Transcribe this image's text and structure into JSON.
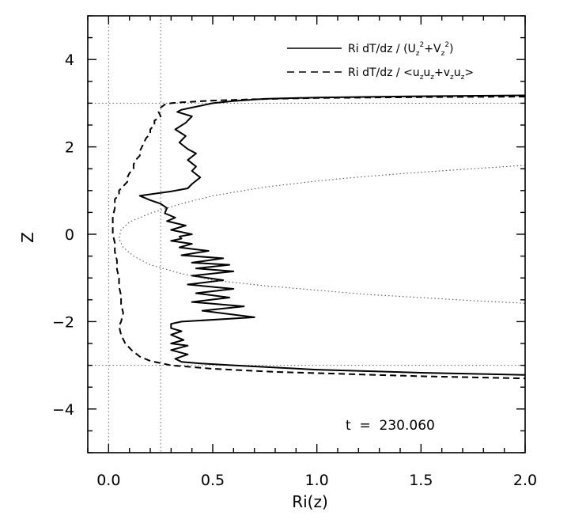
{
  "chart_data": {
    "type": "line",
    "xlabel": "Ri(z)",
    "ylabel": "Z",
    "xlim": [
      -0.1,
      2.0
    ],
    "ylim": [
      -5,
      5
    ],
    "x_ticks": [
      0.0,
      0.5,
      1.0,
      1.5,
      2.0
    ],
    "x_tick_labels": [
      "0.0",
      "0.5",
      "1.0",
      "1.5",
      "2.0"
    ],
    "y_ticks": [
      -4,
      -2,
      0,
      2,
      4
    ],
    "y_tick_labels": [
      "−4",
      "−2",
      "0",
      "2",
      "4"
    ],
    "grid": false,
    "legend_position": "top-right",
    "annotation": "t  =  230.060",
    "legend": [
      {
        "prefix": "Ri dT/dz / (U",
        "mid": "+V",
        "suffix": ")",
        "sub1": "z",
        "sup1": "2",
        "sub2": "z",
        "sup2": "2",
        "style": "solid"
      },
      {
        "prefix": "Ri dT/dz / <u",
        "parts": [
          "u",
          "+v",
          "u",
          ">"
        ],
        "style": "dashed"
      }
    ],
    "reference_lines": {
      "vertical_x": [
        0.0,
        0.25
      ],
      "horizontal_y": [
        3.0,
        -3.0
      ]
    },
    "series": [
      {
        "style": "solid",
        "points": [
          [
            2.0,
            3.18
          ],
          [
            1.5,
            3.16
          ],
          [
            1.0,
            3.13
          ],
          [
            0.75,
            3.1
          ],
          [
            0.6,
            3.05
          ],
          [
            0.5,
            3.0
          ],
          [
            0.45,
            2.95
          ],
          [
            0.4,
            2.9
          ],
          [
            0.35,
            2.85
          ],
          [
            0.33,
            2.8
          ],
          [
            0.4,
            2.7
          ],
          [
            0.37,
            2.55
          ],
          [
            0.32,
            2.4
          ],
          [
            0.37,
            2.25
          ],
          [
            0.34,
            2.1
          ],
          [
            0.38,
            1.95
          ],
          [
            0.42,
            1.85
          ],
          [
            0.38,
            1.7
          ],
          [
            0.42,
            1.55
          ],
          [
            0.4,
            1.45
          ],
          [
            0.44,
            1.3
          ],
          [
            0.4,
            1.15
          ],
          [
            0.38,
            1.05
          ],
          [
            0.3,
            0.98
          ],
          [
            0.22,
            0.93
          ],
          [
            0.15,
            0.88
          ],
          [
            0.2,
            0.78
          ],
          [
            0.25,
            0.7
          ],
          [
            0.28,
            0.6
          ],
          [
            0.27,
            0.48
          ],
          [
            0.32,
            0.38
          ],
          [
            0.28,
            0.3
          ],
          [
            0.37,
            0.2
          ],
          [
            0.3,
            0.1
          ],
          [
            0.4,
            0.0
          ],
          [
            0.34,
            -0.05
          ],
          [
            0.35,
            -0.1
          ],
          [
            0.3,
            -0.15
          ],
          [
            0.4,
            -0.22
          ],
          [
            0.34,
            -0.3
          ],
          [
            0.48,
            -0.38
          ],
          [
            0.35,
            -0.48
          ],
          [
            0.55,
            -0.55
          ],
          [
            0.4,
            -0.65
          ],
          [
            0.58,
            -0.7
          ],
          [
            0.42,
            -0.78
          ],
          [
            0.6,
            -0.85
          ],
          [
            0.4,
            -0.95
          ],
          [
            0.55,
            -1.05
          ],
          [
            0.38,
            -1.15
          ],
          [
            0.6,
            -1.25
          ],
          [
            0.42,
            -1.35
          ],
          [
            0.58,
            -1.45
          ],
          [
            0.4,
            -1.55
          ],
          [
            0.65,
            -1.65
          ],
          [
            0.45,
            -1.75
          ],
          [
            0.7,
            -1.9
          ],
          [
            0.35,
            -2.0
          ],
          [
            0.3,
            -2.05
          ],
          [
            0.3,
            -2.15
          ],
          [
            0.35,
            -2.22
          ],
          [
            0.3,
            -2.3
          ],
          [
            0.36,
            -2.42
          ],
          [
            0.3,
            -2.5
          ],
          [
            0.38,
            -2.55
          ],
          [
            0.3,
            -2.65
          ],
          [
            0.38,
            -2.75
          ],
          [
            0.32,
            -2.85
          ],
          [
            0.35,
            -2.92
          ],
          [
            0.45,
            -2.96
          ],
          [
            0.6,
            -3.0
          ],
          [
            0.8,
            -3.05
          ],
          [
            1.0,
            -3.1
          ],
          [
            1.5,
            -3.17
          ],
          [
            2.0,
            -3.22
          ]
        ]
      },
      {
        "style": "dashed",
        "points": [
          [
            2.0,
            3.15
          ],
          [
            1.5,
            3.14
          ],
          [
            1.0,
            3.12
          ],
          [
            0.7,
            3.09
          ],
          [
            0.5,
            3.06
          ],
          [
            0.35,
            3.02
          ],
          [
            0.3,
            3.0
          ],
          [
            0.27,
            2.97
          ],
          [
            0.25,
            2.9
          ],
          [
            0.24,
            2.8
          ],
          [
            0.25,
            2.7
          ],
          [
            0.22,
            2.6
          ],
          [
            0.22,
            2.5
          ],
          [
            0.2,
            2.4
          ],
          [
            0.2,
            2.3
          ],
          [
            0.18,
            2.2
          ],
          [
            0.17,
            2.1
          ],
          [
            0.16,
            2.0
          ],
          [
            0.15,
            1.9
          ],
          [
            0.15,
            1.8
          ],
          [
            0.13,
            1.7
          ],
          [
            0.12,
            1.6
          ],
          [
            0.12,
            1.5
          ],
          [
            0.1,
            1.4
          ],
          [
            0.09,
            1.3
          ],
          [
            0.09,
            1.2
          ],
          [
            0.07,
            1.1
          ],
          [
            0.05,
            1.0
          ],
          [
            0.05,
            0.9
          ],
          [
            0.03,
            0.8
          ],
          [
            0.03,
            0.6
          ],
          [
            0.02,
            0.4
          ],
          [
            0.02,
            0.2
          ],
          [
            0.02,
            0.0
          ],
          [
            0.03,
            -0.2
          ],
          [
            0.03,
            -0.4
          ],
          [
            0.04,
            -0.6
          ],
          [
            0.04,
            -0.8
          ],
          [
            0.05,
            -1.0
          ],
          [
            0.05,
            -1.2
          ],
          [
            0.06,
            -1.4
          ],
          [
            0.06,
            -1.6
          ],
          [
            0.07,
            -1.8
          ],
          [
            0.06,
            -2.0
          ],
          [
            0.05,
            -2.1
          ],
          [
            0.06,
            -2.3
          ],
          [
            0.08,
            -2.5
          ],
          [
            0.11,
            -2.65
          ],
          [
            0.15,
            -2.8
          ],
          [
            0.2,
            -2.9
          ],
          [
            0.3,
            -3.0
          ],
          [
            0.5,
            -3.08
          ],
          [
            0.8,
            -3.15
          ],
          [
            1.0,
            -3.18
          ],
          [
            1.5,
            -3.25
          ],
          [
            2.0,
            -3.3
          ]
        ]
      },
      {
        "style": "dotted",
        "points": [
          [
            2.0,
            1.58
          ],
          [
            1.75,
            1.5
          ],
          [
            1.5,
            1.42
          ],
          [
            1.25,
            1.33
          ],
          [
            1.0,
            1.22
          ],
          [
            0.75,
            1.08
          ],
          [
            0.5,
            0.88
          ],
          [
            0.35,
            0.7
          ],
          [
            0.2,
            0.48
          ],
          [
            0.1,
            0.28
          ],
          [
            0.06,
            0.1
          ],
          [
            0.05,
            -0.1
          ],
          [
            0.07,
            -0.3
          ],
          [
            0.12,
            -0.5
          ],
          [
            0.2,
            -0.7
          ],
          [
            0.35,
            -0.9
          ],
          [
            0.5,
            -1.05
          ],
          [
            0.75,
            -1.18
          ],
          [
            1.0,
            -1.28
          ],
          [
            1.25,
            -1.38
          ],
          [
            1.5,
            -1.45
          ],
          [
            1.75,
            -1.52
          ],
          [
            2.0,
            -1.58
          ]
        ]
      }
    ]
  }
}
